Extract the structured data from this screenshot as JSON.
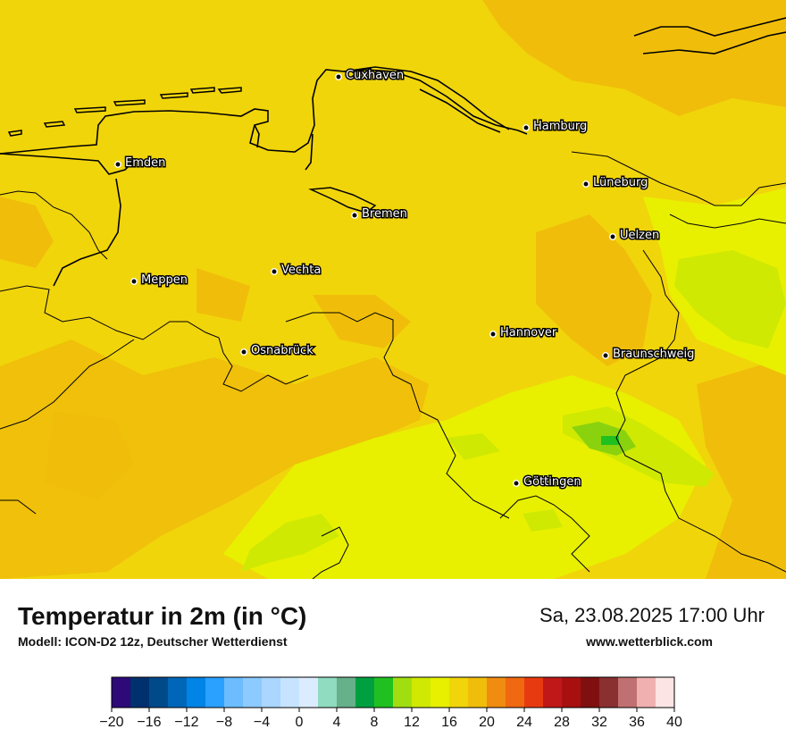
{
  "map": {
    "region": "Niedersachsen / Bremen / Hamburg",
    "cities": [
      {
        "name": "Cuxhaven",
        "lon": 8.69,
        "lat": 53.87
      },
      {
        "name": "Hamburg",
        "lon": 9.99,
        "lat": 53.55
      },
      {
        "name": "Emden",
        "lon": 7.21,
        "lat": 53.37
      },
      {
        "name": "Lüneburg",
        "lon": 10.41,
        "lat": 53.25
      },
      {
        "name": "Bremen",
        "lon": 8.8,
        "lat": 53.08
      },
      {
        "name": "Uelzen",
        "lon": 10.56,
        "lat": 52.96
      },
      {
        "name": "Vechta",
        "lon": 8.29,
        "lat": 52.73
      },
      {
        "name": "Meppen",
        "lon": 7.29,
        "lat": 52.69
      },
      {
        "name": "Hannover",
        "lon": 9.74,
        "lat": 52.37
      },
      {
        "name": "Osnabrück",
        "lon": 8.05,
        "lat": 52.28
      },
      {
        "name": "Braunschweig",
        "lon": 10.52,
        "lat": 52.27
      },
      {
        "name": "Göttingen",
        "lon": 9.93,
        "lat": 51.54
      }
    ],
    "colors": {
      "base_16_18": "#f1d50b",
      "warm_18_20": "#f0be0a",
      "cool_14_16": "#e8f000",
      "cooler_12_14": "#cfe903",
      "coolest_10_12": "#8ad20e",
      "coast": "#000000"
    }
  },
  "header": {
    "title": "Temperatur in 2m (in °C)",
    "model": "Modell: ICON-D2 12z, Deutscher Wetterdienst",
    "datetime": "Sa, 23.08.2025 17:00 Uhr",
    "website": "www.wetterblick.com"
  },
  "legend": {
    "unit": "°C",
    "tick_labels": [
      "−20",
      "−16",
      "−12",
      "−8",
      "−4",
      "0",
      "4",
      "8",
      "12",
      "16",
      "20",
      "24",
      "28",
      "32",
      "36",
      "40"
    ],
    "colors": [
      "#2d0a78",
      "#00306e",
      "#004a8a",
      "#0066b8",
      "#0084e6",
      "#2aa0ff",
      "#6cbcff",
      "#8ccaff",
      "#aad6ff",
      "#c6e4ff",
      "#dcecff",
      "#8fdcc0",
      "#66b08a",
      "#00a040",
      "#20c020",
      "#a0de10",
      "#cfe903",
      "#e8f000",
      "#f1d50b",
      "#f0be0a",
      "#f08c10",
      "#f06810",
      "#e83a10",
      "#c01818",
      "#a81010",
      "#801010",
      "#8a3030",
      "#c07070",
      "#f0b0b0",
      "#fce4e4"
    ]
  }
}
